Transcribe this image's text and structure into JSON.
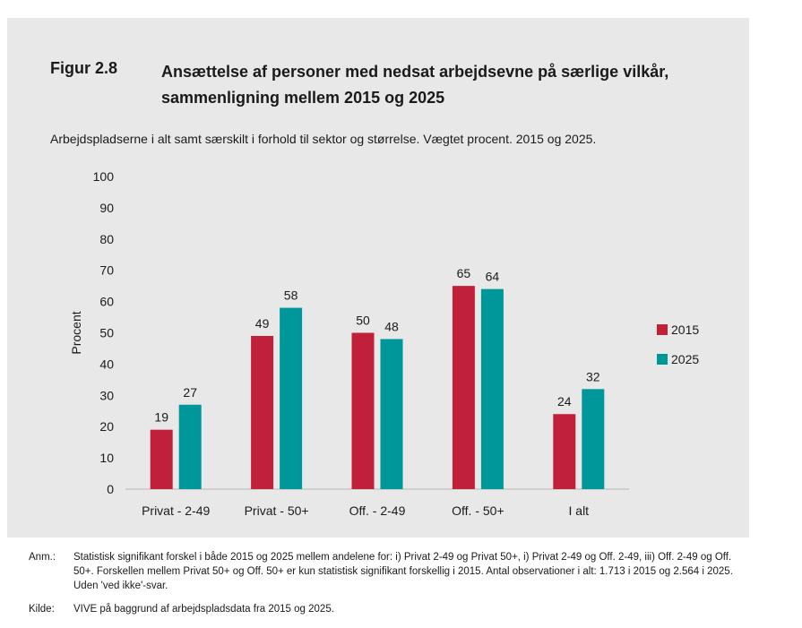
{
  "figure": {
    "label": "Figur 2.8",
    "title": "Ansættelse af personer med nedsat arbejdsevne på særlige vilkår, sammenligning mellem 2015 og 2025",
    "subtitle": "Arbejdspladserne i alt samt særskilt i forhold til sektor og størrelse. Vægtet procent. 2015 og 2025."
  },
  "chart_data": {
    "type": "bar",
    "categories": [
      "Privat - 2-49",
      "Privat - 50+",
      "Off. - 2-49",
      "Off. - 50+",
      "I alt"
    ],
    "series": [
      {
        "name": "2015",
        "color": "#c0203a",
        "values": [
          19,
          49,
          50,
          65,
          24
        ]
      },
      {
        "name": "2025",
        "color": "#00979a",
        "values": [
          27,
          58,
          48,
          64,
          32
        ]
      }
    ],
    "ylabel": "Procent",
    "ylim": [
      0,
      100
    ],
    "yticks": [
      "0",
      "10",
      "20",
      "30",
      "40",
      "50",
      "60",
      "70",
      "80",
      "90",
      "100"
    ],
    "grid": false,
    "legend_position": "right"
  },
  "notes": {
    "anm_label": "Anm.:",
    "anm_text": "Statistisk signifikant forskel i både 2015 og 2025 mellem andelene for: i) Privat 2-49 og Privat 50+, i) Privat 2-49 og Off. 2-49, iii) Off. 2-49 og Off. 50+. Forskellen mellem Privat 50+ og Off. 50+ er kun statistisk signifikant forskellig i 2015. Antal observationer i alt: 1.713 i 2015 og 2.564 i 2025. Uden 'ved ikke'-svar.",
    "kilde_label": "Kilde:",
    "kilde_text": "VIVE på baggrund af arbejdspladsdata fra 2015 og 2025."
  }
}
